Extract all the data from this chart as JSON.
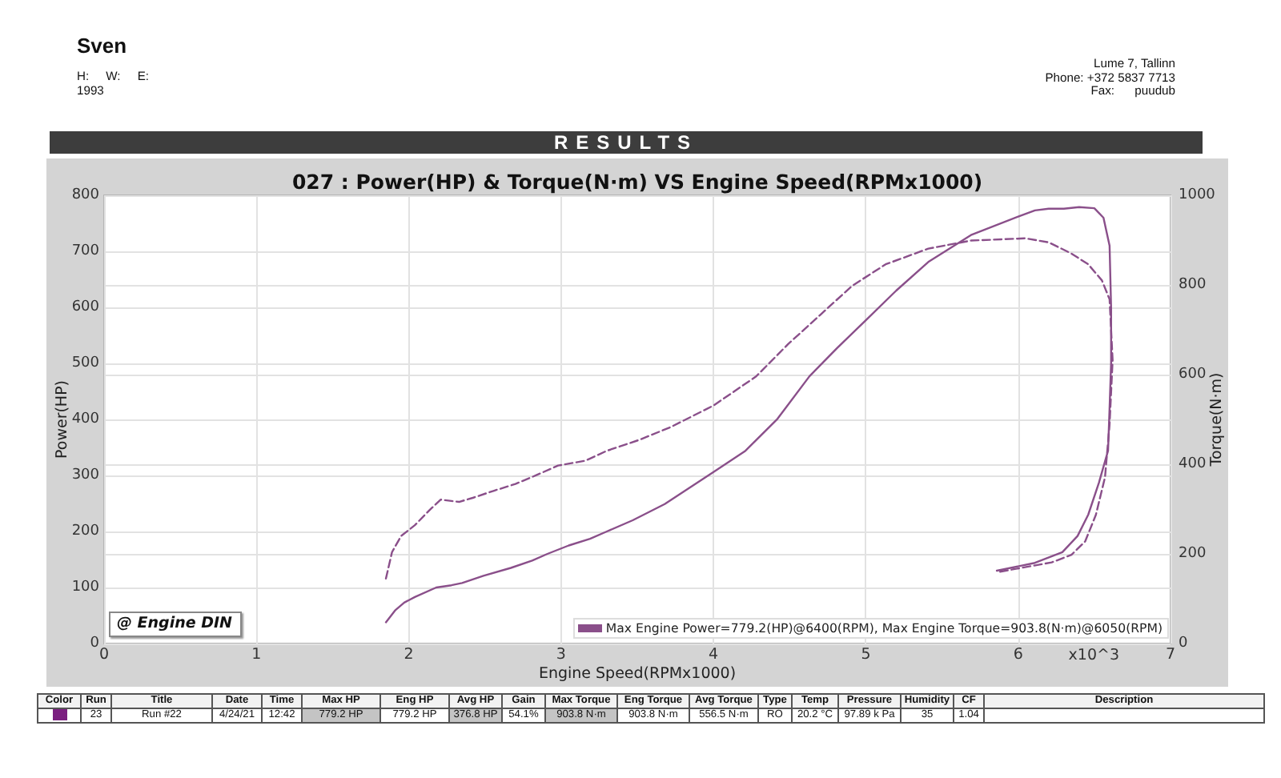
{
  "chart_data": [
    {
      "type": "other",
      "title": "RESULTS",
      "annotations": [
        "Sven",
        "H:     W:     E:",
        "1993",
        "Lume 7, Tallinn",
        "Phone: +372 5837 7713",
        "Fax:      puudub"
      ]
    },
    {
      "type": "line",
      "title": "027 : Power(HP) & Torque(N·m) VS Engine Speed(RPMx1000)",
      "xlabel": "Engine Speed(RPMx1000)",
      "ylabel": "Power(HP)",
      "y2label": "Torque(N·m)",
      "xlim": [
        0,
        7
      ],
      "xticks": [
        0,
        1,
        2,
        3,
        4,
        5,
        6,
        7
      ],
      "ylim": [
        0,
        800
      ],
      "yticks": [
        0,
        100,
        200,
        300,
        400,
        500,
        600,
        700,
        800
      ],
      "y2lim": [
        0,
        1000
      ],
      "y2ticks": [
        0,
        200,
        400,
        600,
        800,
        1000
      ],
      "grid": true,
      "marker": "none",
      "annotations": [
        "@ Engine DIN",
        "Max Engine Power=779.2(HP)@6400(RPM), Max Engine Torque=903.8(N·m)@6050(RPM)",
        "x10^3"
      ],
      "series": [
        {
          "color": "#8a4f8a",
          "line_style": "solid",
          "x": [
            1.85,
            1.91,
            1.97,
            2.04,
            2.18,
            2.28,
            2.35,
            2.49,
            2.67,
            2.81,
            2.91,
            3.05,
            3.19,
            3.3,
            3.47,
            3.68,
            4.0,
            4.21,
            4.42,
            4.63,
            4.81,
            5.0,
            5.2,
            5.41,
            5.69,
            6.0,
            6.11,
            6.2,
            6.3,
            6.4,
            6.5,
            6.56,
            6.6,
            6.61,
            6.61,
            6.6,
            6.59,
            6.53,
            6.46,
            6.39,
            6.29,
            6.11,
            5.86
          ],
          "values": [
            38,
            59,
            73,
            83,
            100,
            104,
            108,
            121,
            135,
            148,
            160,
            175,
            187,
            200,
            220,
            249,
            306,
            344,
            401,
            477,
            527,
            577,
            630,
            681,
            729,
            762,
            773,
            776,
            776,
            779,
            777,
            760,
            710,
            600,
            500,
            420,
            344,
            287,
            230,
            192,
            163,
            144,
            130
          ]
        },
        {
          "color": "#8a4f8a",
          "line_style": "dashed",
          "axis": "y2",
          "x": [
            1.85,
            1.89,
            1.95,
            2.04,
            2.14,
            2.21,
            2.28,
            2.33,
            2.42,
            2.56,
            2.7,
            2.84,
            2.98,
            3.16,
            3.3,
            3.51,
            3.72,
            4.0,
            4.28,
            4.49,
            4.7,
            4.91,
            5.13,
            5.41,
            5.69,
            6.05,
            6.2,
            6.35,
            6.46,
            6.55,
            6.6,
            6.62,
            6.6,
            6.57,
            6.51,
            6.44,
            6.35,
            6.22,
            5.86
          ],
          "values": [
            145,
            204,
            240,
            264,
            299,
            321,
            318,
            316,
            325,
            341,
            356,
            376,
            397,
            408,
            430,
            454,
            483,
            531,
            596,
            668,
            733,
            798,
            846,
            881,
            899,
            904,
            895,
            870,
            846,
            810,
            768,
            632,
            489,
            371,
            287,
            228,
            198,
            181,
            159
          ]
        }
      ]
    },
    {
      "type": "other",
      "color": "#7b1f80",
      "categories": [
        "Color",
        "Run",
        "Title",
        "Date",
        "Time",
        "Max HP",
        "Eng HP",
        "Avg HP",
        "Gain",
        "Max Torque",
        "Eng Torque",
        "Avg Torque",
        "Type",
        "Temp",
        "Pressure",
        "Humidity",
        "CF",
        "Description"
      ],
      "annotations": [
        "23",
        "Run #22",
        "4/24/21",
        "12:42",
        "779.2 HP",
        "779.2 HP",
        "376.8 HP",
        "54.1%",
        "903.8 N·m",
        "903.8 N·m",
        "556.5 N·m",
        "RO",
        "20.2 °C",
        "97.89 k Pa",
        "35",
        "1.04"
      ]
    }
  ]
}
